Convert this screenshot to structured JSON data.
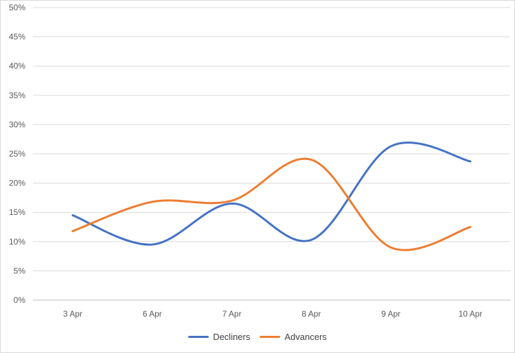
{
  "chart_data": {
    "type": "line",
    "smooth": true,
    "categories": [
      "3 Apr",
      "6 Apr",
      "7 Apr",
      "8 Apr",
      "9 Apr",
      "10 Apr"
    ],
    "series": [
      {
        "name": "Decliners",
        "values": [
          14.5,
          9.5,
          16.5,
          10.3,
          26.3,
          23.7
        ],
        "color": "#4472C4"
      },
      {
        "name": "Advancers",
        "values": [
          11.8,
          16.8,
          17.0,
          24.0,
          9.0,
          12.5
        ],
        "color": "#ED7D31"
      }
    ],
    "ylim": [
      0,
      50
    ],
    "yticks": [
      "0%",
      "5%",
      "10%",
      "15%",
      "20%",
      "25%",
      "30%",
      "35%",
      "40%",
      "45%",
      "50%"
    ],
    "grid": true,
    "legend": "bottom",
    "title": "",
    "xlabel": "",
    "ylabel": ""
  }
}
